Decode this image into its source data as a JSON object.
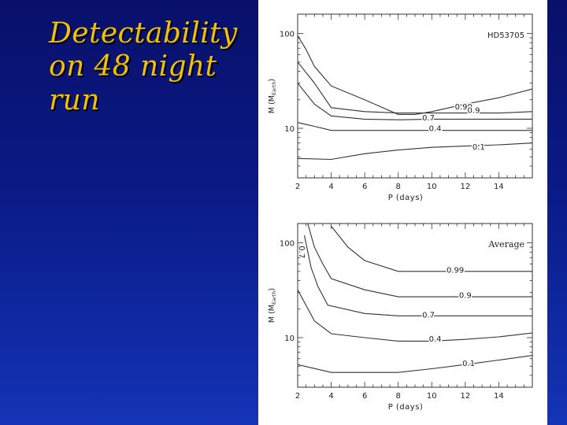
{
  "slide": {
    "title_lines": [
      "Detectability",
      "on 48 night",
      "run"
    ],
    "colors": {
      "title": "#f2c200",
      "background": "#0a1a86",
      "panel": "#ffffff"
    }
  },
  "chart_data": [
    {
      "type": "line",
      "title": "HD53705",
      "xlabel": "P (days)",
      "ylabel": "M (M_Earth)",
      "ylabel_main": "M",
      "ylabel_sub": "Earth",
      "xlim": [
        2,
        16
      ],
      "ylim": [
        3,
        160
      ],
      "log_y": true,
      "x_ticks": [
        2,
        4,
        6,
        8,
        10,
        12,
        14
      ],
      "y_ticks": [
        10,
        100
      ],
      "series": [
        {
          "name": "0.99",
          "x": [
            2,
            2.5,
            3,
            4,
            6,
            8,
            9,
            10,
            12,
            14,
            16
          ],
          "y": [
            95,
            68,
            45,
            28,
            20,
            14,
            14,
            15,
            18,
            21,
            26
          ]
        },
        {
          "name": "0.9",
          "x": [
            2,
            3,
            4,
            6,
            8,
            10,
            12,
            14,
            16
          ],
          "y": [
            50,
            30,
            16.5,
            15,
            14.5,
            14.5,
            14.5,
            14.5,
            15
          ]
        },
        {
          "name": "0.7",
          "x": [
            2,
            3,
            4,
            6,
            8,
            10,
            12,
            14,
            16
          ],
          "y": [
            30,
            18,
            13.5,
            12.5,
            12.3,
            12.5,
            12.5,
            12.5,
            12.5
          ]
        },
        {
          "name": "0.4",
          "x": [
            2,
            3,
            4,
            6,
            8,
            10,
            12,
            14,
            16
          ],
          "y": [
            11.5,
            10.5,
            9.5,
            9.5,
            9.5,
            9.5,
            9.5,
            9.5,
            9.5
          ]
        },
        {
          "name": "0.1",
          "x": [
            2,
            4,
            6,
            8,
            10,
            12,
            14,
            16
          ],
          "y": [
            4.8,
            4.7,
            5.4,
            5.9,
            6.3,
            6.5,
            6.7,
            7.0
          ]
        }
      ],
      "annotations": [
        {
          "text": "0.99",
          "x": 11.9,
          "y": 17
        },
        {
          "text": "0.9",
          "x": 12.5,
          "y": 15.5
        },
        {
          "text": "0.7",
          "x": 9.8,
          "y": 13
        },
        {
          "text": "0.4",
          "x": 10.2,
          "y": 10
        },
        {
          "text": "0.1",
          "x": 12.8,
          "y": 6.4
        }
      ]
    },
    {
      "type": "line",
      "title": "Average",
      "xlabel": "P (days)",
      "ylabel": "M (M_Earth)",
      "ylabel_main": "M",
      "ylabel_sub": "Earth",
      "xlim": [
        2,
        16
      ],
      "ylim": [
        3,
        160
      ],
      "log_y": true,
      "x_ticks": [
        2,
        4,
        6,
        8,
        10,
        12,
        14
      ],
      "y_ticks": [
        10,
        100
      ],
      "series": [
        {
          "name": "0.99",
          "x": [
            4,
            5,
            6,
            8,
            10,
            12,
            14,
            16
          ],
          "y": [
            150,
            90,
            65,
            50,
            50,
            50,
            50,
            50
          ]
        },
        {
          "name": "0.9",
          "x": [
            2.6,
            3,
            3.5,
            4,
            6,
            8,
            10,
            12,
            14,
            16
          ],
          "y": [
            160,
            90,
            60,
            42,
            32,
            27,
            27,
            27,
            27,
            27
          ]
        },
        {
          "name": "0.7",
          "x": [
            2.4,
            2.8,
            3.2,
            3.8,
            6,
            8,
            10,
            12,
            14,
            16
          ],
          "y": [
            120,
            55,
            35,
            22,
            18,
            17,
            17,
            17,
            17,
            17
          ]
        },
        {
          "name": "0.4",
          "x": [
            2,
            3,
            4,
            6,
            8,
            10,
            12,
            14,
            16
          ],
          "y": [
            32,
            15,
            11,
            10,
            9.2,
            9.2,
            9.6,
            10.2,
            11.2
          ]
        },
        {
          "name": "0.1",
          "x": [
            2,
            4,
            6,
            8,
            10,
            12,
            14,
            16
          ],
          "y": [
            5.2,
            4.3,
            4.3,
            4.3,
            4.7,
            5.2,
            5.8,
            6.5
          ]
        }
      ],
      "annotations": [
        {
          "text": "0.99",
          "x": 11.4,
          "y": 52
        },
        {
          "text": "0.9",
          "x": 12.0,
          "y": 28
        },
        {
          "text": "0.7",
          "x": 9.8,
          "y": 17.5
        },
        {
          "text": "0.4",
          "x": 10.2,
          "y": 9.7
        },
        {
          "text": "0.1",
          "x": 12.2,
          "y": 5.4
        },
        {
          "text": "0.7",
          "x": 2.25,
          "y": 80,
          "rotate": 90
        }
      ]
    }
  ]
}
